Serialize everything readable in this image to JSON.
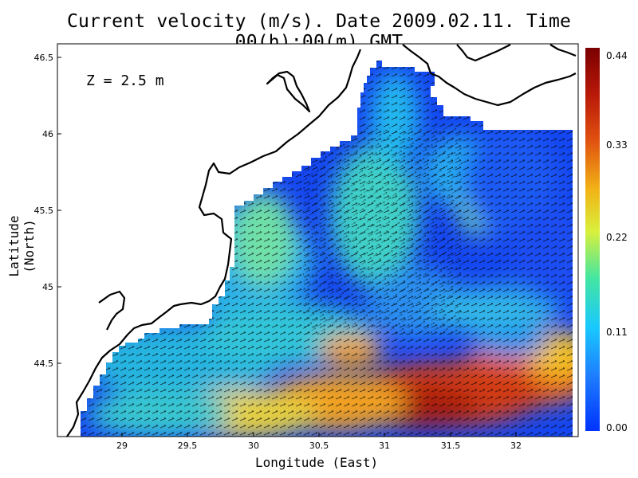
{
  "title": "Current velocity (m/s). Date 2009.02.11. Time 00(h):00(m) GMT",
  "depth_label": "Z = 2.5 m",
  "axes": {
    "xlabel": "Longitude (East)",
    "ylabel": "Latitude (North)",
    "xlim": [
      28.45,
      32.45
    ],
    "ylim": [
      44.05,
      46.53
    ],
    "xticks": [
      "29",
      "29.5",
      "30",
      "30.5",
      "31",
      "31.5",
      "32"
    ],
    "yticks": [
      "44.5",
      "45",
      "45.5",
      "46",
      "46.5"
    ]
  },
  "colorbar": {
    "ticks": [
      "0.44",
      "0.33",
      "0.22",
      "0.11",
      "0.00"
    ],
    "range": [
      0.0,
      0.44
    ],
    "colors": [
      "#0033ff",
      "#1e7bff",
      "#19c8ff",
      "#44e6a0",
      "#d8f03c",
      "#f2b316",
      "#e05010",
      "#b81808",
      "#7a0000"
    ]
  },
  "map_colors": {
    "land": "#ffffff",
    "coastline": "#000000",
    "arrows": "#000000",
    "low_speed": "#1546f0",
    "mid_speed": "#22c0e8",
    "high_speed": "#c8281c"
  }
}
